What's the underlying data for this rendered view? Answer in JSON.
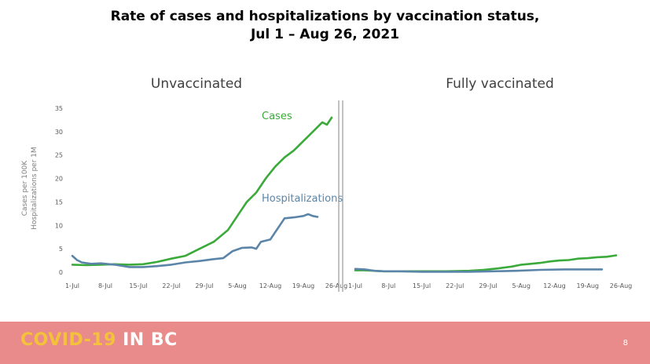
{
  "slide": {
    "title_line1": "Rate of cases and hospitalizations by vaccination status,",
    "title_line2": "Jul 1 – Aug 26, 2021",
    "footer_logo_part1": "COVID-19",
    "footer_logo_part2": "IN BC",
    "page_number": "8"
  },
  "colors": {
    "cases": "#3aaa3a",
    "hospitalizations": "#5b85a8",
    "footer": "#e98b8a",
    "logo_accent": "#f4c23a"
  },
  "chart_data": [
    {
      "type": "line",
      "title": "Unvaccinated",
      "ylabel": "Cases per 100K\nHospitalizations per 1M",
      "xlabel": "",
      "x_ticks": [
        "1-Jul",
        "8-Jul",
        "15-Jul",
        "22-Jul",
        "29-Jul",
        "5-Aug",
        "12-Aug",
        "19-Aug",
        "26-Aug"
      ],
      "x_range": [
        1,
        57
      ],
      "ylim": [
        0,
        35
      ],
      "y_ticks": [
        0,
        5,
        10,
        15,
        20,
        25,
        30,
        35
      ],
      "grid": false,
      "series": [
        {
          "name": "Cases",
          "color": "#3aaa3a",
          "label_position": "near-end",
          "x": [
            1,
            4,
            7,
            10,
            13,
            16,
            19,
            22,
            25,
            28,
            31,
            34,
            36,
            38,
            40,
            42,
            44,
            46,
            48,
            50,
            52,
            53,
            54,
            55,
            56
          ],
          "y": [
            1.6,
            1.5,
            1.6,
            1.7,
            1.6,
            1.7,
            2.2,
            2.9,
            3.5,
            5.0,
            6.5,
            9.0,
            12.0,
            15.0,
            17.0,
            20.0,
            22.5,
            24.5,
            26.0,
            28.0,
            30.0,
            31.0,
            32.0,
            31.5,
            33.0
          ]
        },
        {
          "name": "Hospitalizations",
          "color": "#5b85a8",
          "label_position": "near-end",
          "x": [
            1,
            2,
            3,
            5,
            7,
            10,
            13,
            16,
            19,
            22,
            25,
            28,
            31,
            33,
            35,
            37,
            39,
            40,
            41,
            43,
            44,
            45,
            46,
            48,
            50,
            51,
            52,
            53
          ],
          "y": [
            3.5,
            2.6,
            2.1,
            1.8,
            1.9,
            1.6,
            1.1,
            1.1,
            1.3,
            1.6,
            2.1,
            2.4,
            2.8,
            3.0,
            4.5,
            5.2,
            5.3,
            5.0,
            6.5,
            7.0,
            8.5,
            10.0,
            11.5,
            11.7,
            12.0,
            12.4,
            12.0,
            11.8
          ]
        }
      ]
    },
    {
      "type": "line",
      "title": "Fully vaccinated",
      "x_ticks": [
        "1-Jul",
        "8-Jul",
        "15-Jul",
        "22-Jul",
        "29-Jul",
        "5-Aug",
        "12-Aug",
        "19-Aug",
        "26-Aug"
      ],
      "x_range": [
        1,
        57
      ],
      "ylim": [
        0,
        35
      ],
      "grid": false,
      "series": [
        {
          "name": "Cases",
          "color": "#3aaa3a",
          "x": [
            1,
            3,
            5,
            7,
            10,
            15,
            20,
            25,
            28,
            31,
            34,
            36,
            38,
            40,
            42,
            44,
            46,
            48,
            50,
            52,
            54,
            56
          ],
          "y": [
            0.4,
            0.4,
            0.3,
            0.2,
            0.2,
            0.2,
            0.2,
            0.3,
            0.5,
            0.8,
            1.2,
            1.6,
            1.8,
            2.0,
            2.3,
            2.5,
            2.6,
            2.9,
            3.0,
            3.2,
            3.3,
            3.6
          ]
        },
        {
          "name": "Hospitalizations",
          "color": "#5b85a8",
          "x": [
            1,
            3,
            5,
            7,
            10,
            15,
            20,
            25,
            30,
            35,
            40,
            45,
            50,
            53
          ],
          "y": [
            0.7,
            0.6,
            0.3,
            0.2,
            0.2,
            0.1,
            0.1,
            0.1,
            0.2,
            0.3,
            0.5,
            0.6,
            0.6,
            0.6
          ]
        }
      ]
    }
  ]
}
